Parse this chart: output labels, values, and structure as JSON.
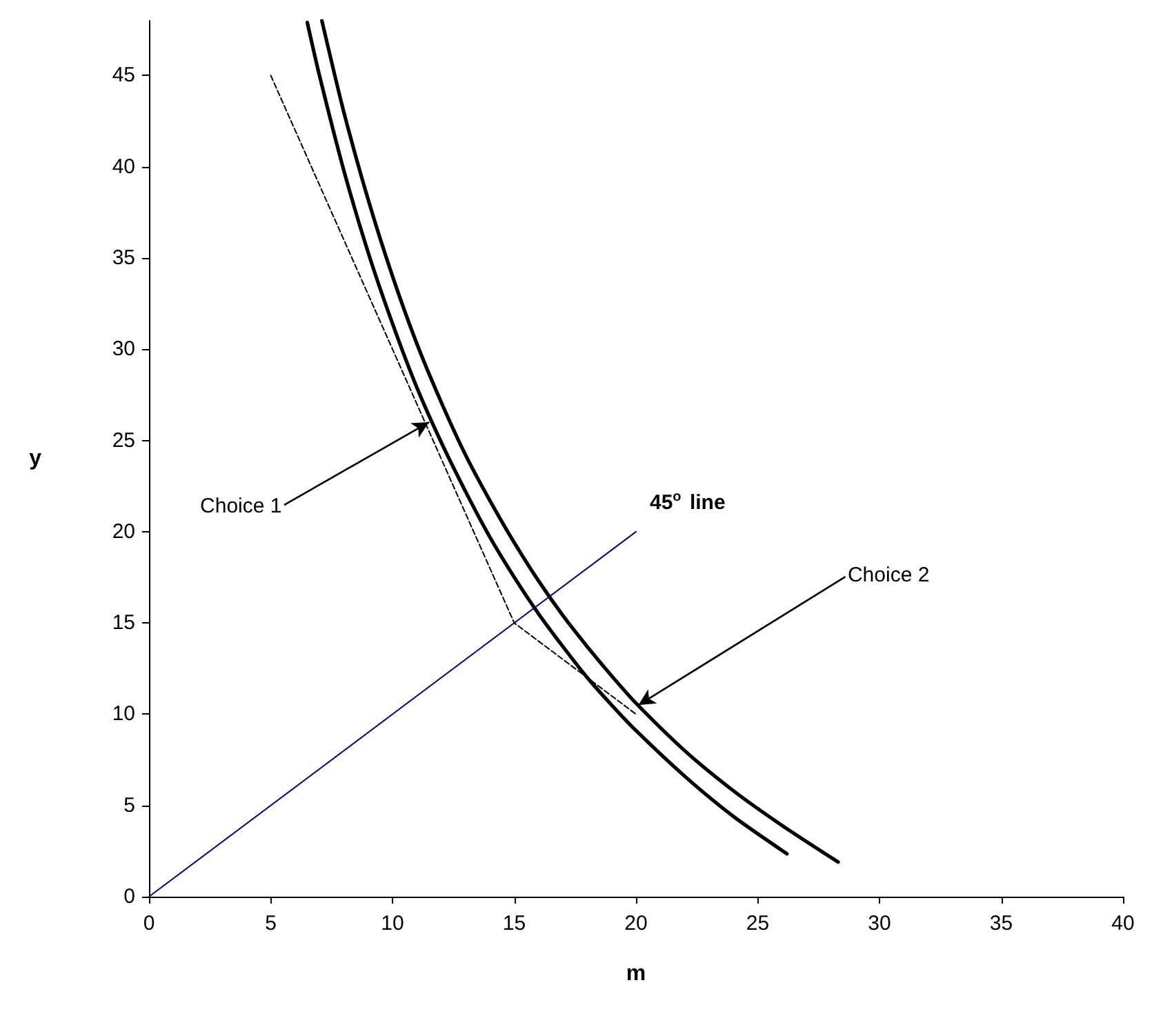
{
  "chart_data": {
    "type": "line",
    "xlabel": "m",
    "ylabel": "y",
    "xlim": [
      0,
      40
    ],
    "xticks": [
      0,
      5,
      10,
      15,
      20,
      25,
      30,
      35,
      40
    ],
    "ylim": [
      0,
      48
    ],
    "yticks": [
      0,
      5,
      10,
      15,
      20,
      25,
      30,
      35,
      40,
      45
    ],
    "grid": false,
    "marker": "none",
    "series": [
      {
        "color": "#000000",
        "line_style": "solid",
        "x": [
          6.5,
          7,
          8,
          9,
          10,
          11,
          12,
          13,
          14,
          15,
          16,
          17,
          18,
          19,
          20,
          22,
          24,
          26.2
        ],
        "values": [
          47.9,
          45.0,
          39.8,
          35.3,
          31.4,
          27.9,
          24.9,
          22.2,
          19.7,
          17.5,
          15.5,
          13.7,
          12.0,
          10.5,
          9.1,
          6.6,
          4.4,
          2.35
        ]
      },
      {
        "color": "#000000",
        "line_style": "solid",
        "x": [
          7.1,
          8,
          9,
          10,
          11,
          12,
          13,
          14,
          15,
          16,
          17,
          18,
          19,
          20,
          22,
          24,
          26,
          28.3
        ],
        "values": [
          48.0,
          43.0,
          38.2,
          34.0,
          30.3,
          27.1,
          24.2,
          21.7,
          19.4,
          17.3,
          15.4,
          13.7,
          12.1,
          10.6,
          8.0,
          5.8,
          3.9,
          1.9
        ]
      },
      {
        "color": "#000000",
        "line_style": "dashed",
        "x": [
          5,
          15,
          20
        ],
        "values": [
          45,
          15,
          10
        ]
      },
      {
        "color": "#000080",
        "line_style": "solid",
        "x": [
          0,
          20
        ],
        "values": [
          0,
          20
        ]
      }
    ],
    "annotations": [
      {
        "text": "Choice 1",
        "x": 11.5,
        "y": 26
      },
      {
        "text": "Choice 2",
        "x": 20.1,
        "y": 10.5
      },
      {
        "text": "45$^{o}$ line",
        "x": 20,
        "y": 20
      }
    ]
  }
}
